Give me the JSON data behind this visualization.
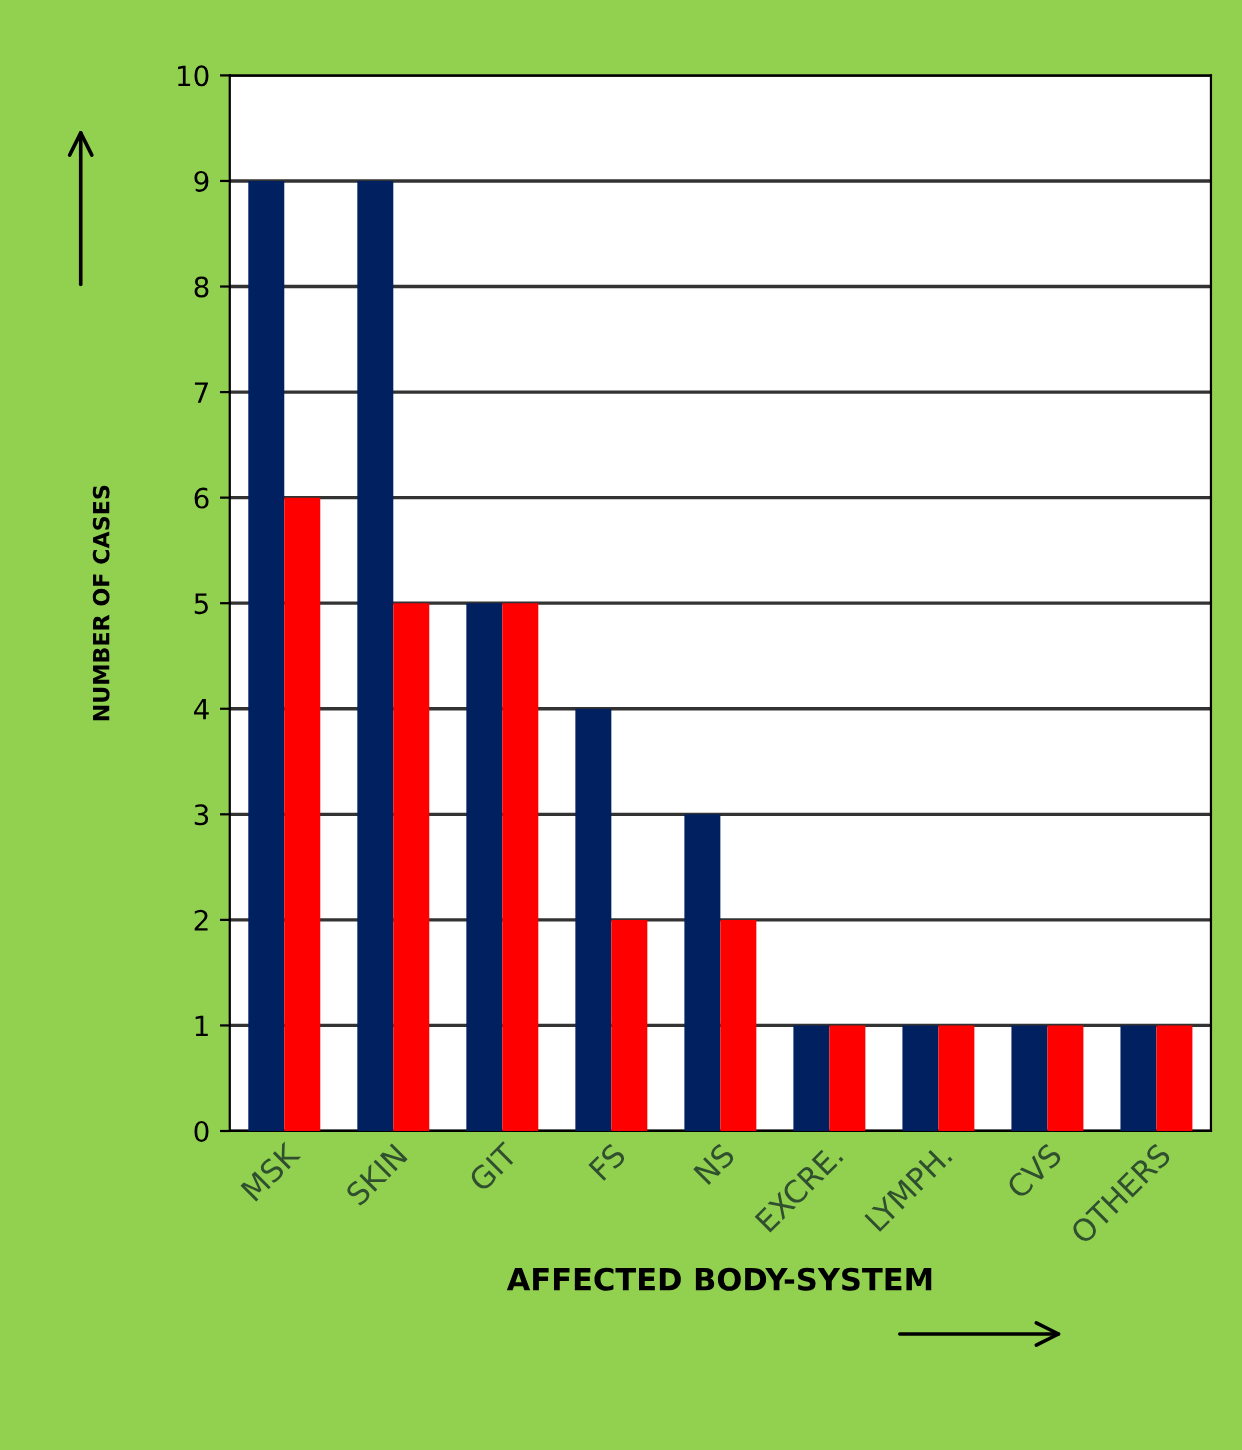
{
  "chart_data": {
    "type": "bar",
    "xlabel": "AFFECTED BODY-SYSTEM",
    "ylabel": "NUMBER OF CASES",
    "categories": [
      "MSK",
      "SKIN",
      "GIT",
      "FS",
      "NS",
      "EXCRE.",
      "LYMPH.",
      "CVS",
      "OTHERS"
    ],
    "series": [
      {
        "color": "#002060",
        "values": [
          9,
          9,
          5,
          4,
          3,
          1,
          1,
          1,
          1
        ]
      },
      {
        "color": "#ff0000",
        "values": [
          6,
          5,
          5,
          2,
          2,
          1,
          1,
          1,
          1
        ]
      }
    ],
    "ylim": [
      0,
      10
    ],
    "yticks": [
      0,
      1,
      2,
      3,
      4,
      5,
      6,
      7,
      8,
      9,
      10
    ],
    "grid": "y"
  }
}
